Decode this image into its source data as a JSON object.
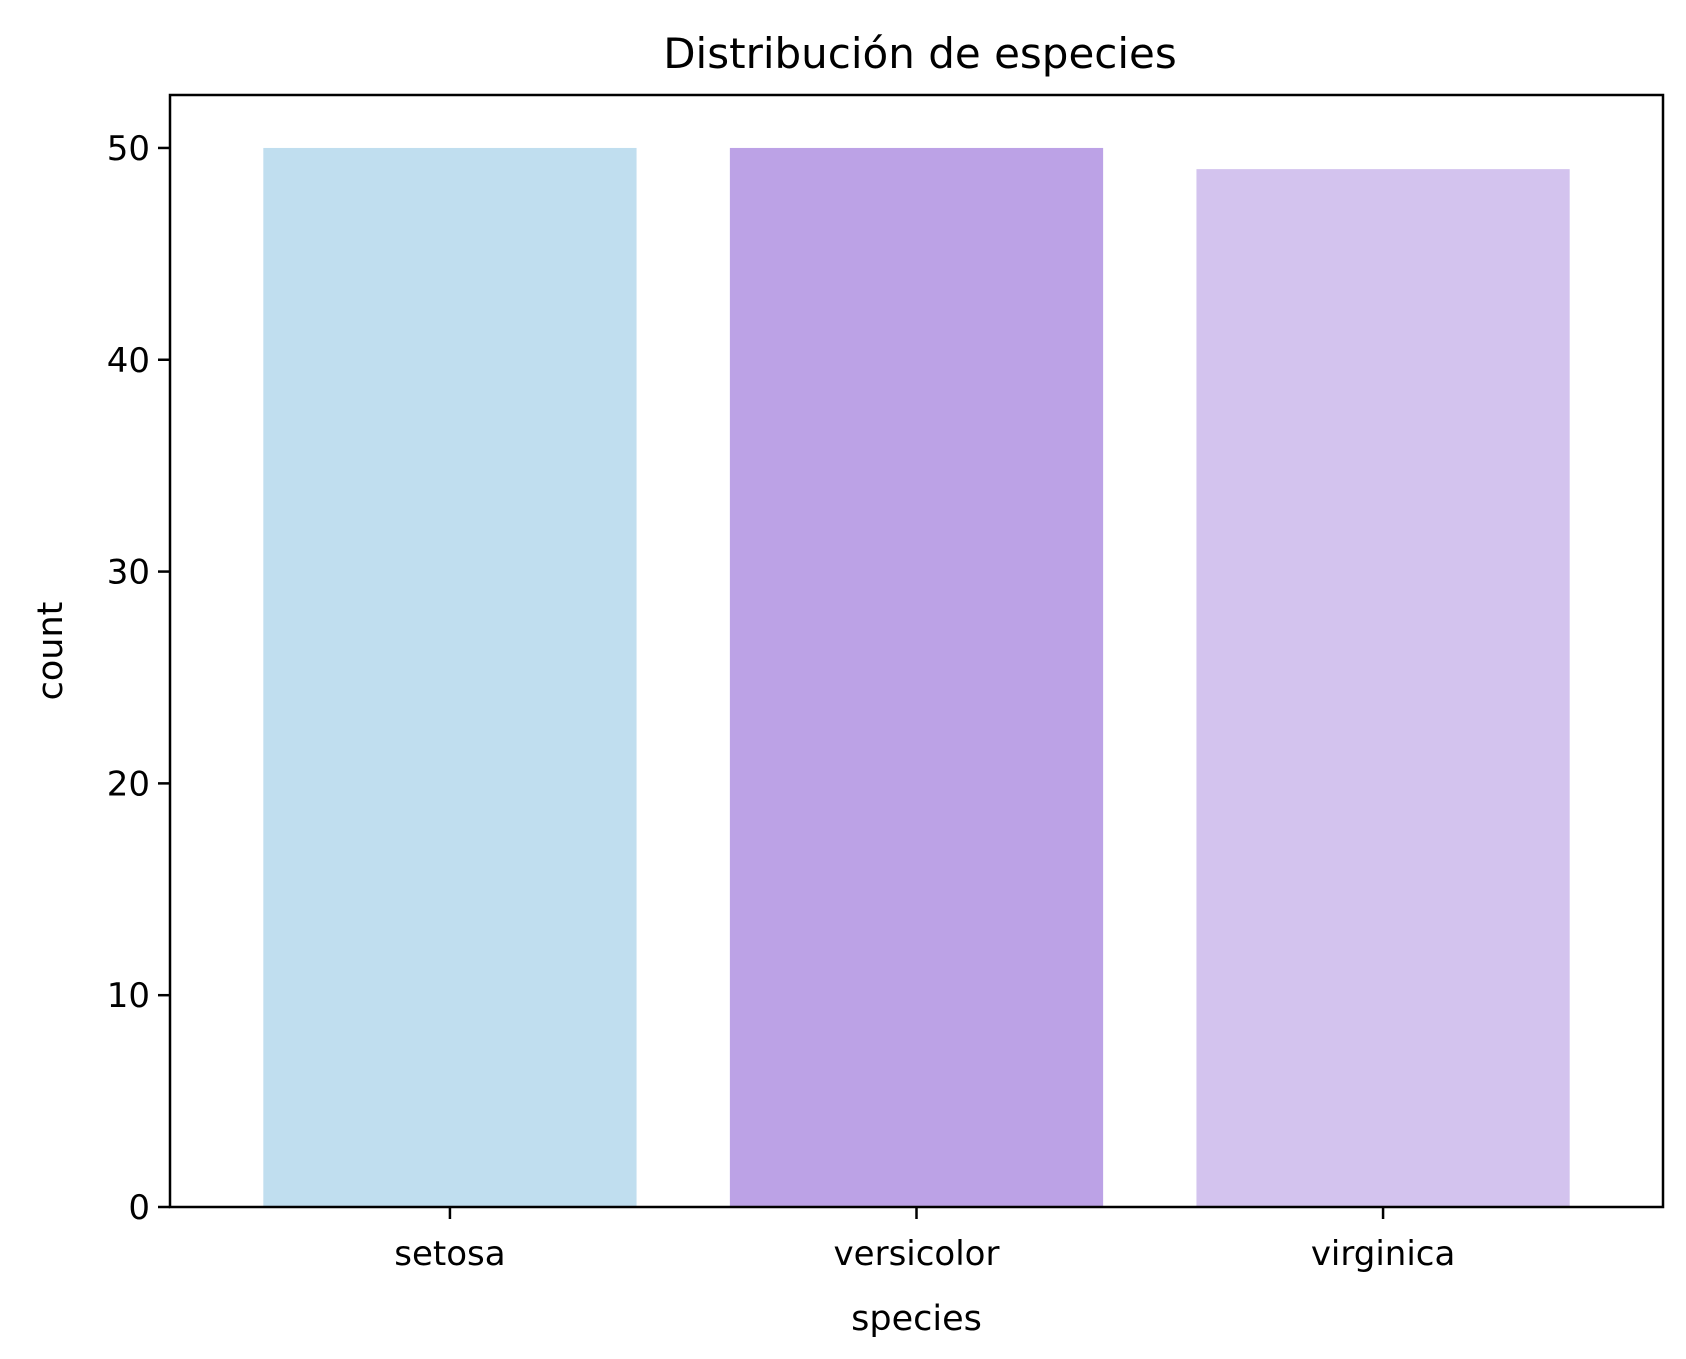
{
  "chart_data": {
    "type": "bar",
    "title": "Distribución de especies",
    "xlabel": "species",
    "ylabel": "count",
    "categories": [
      "setosa",
      "versicolor",
      "virginica"
    ],
    "values": [
      50,
      50,
      49
    ],
    "colors": [
      "#c0deef",
      "#bca2e6",
      "#d3c3ee"
    ],
    "ylim": [
      0,
      52.5
    ],
    "yticks": [
      0,
      10,
      20,
      30,
      40,
      50
    ],
    "grid": false,
    "legend": "none"
  }
}
